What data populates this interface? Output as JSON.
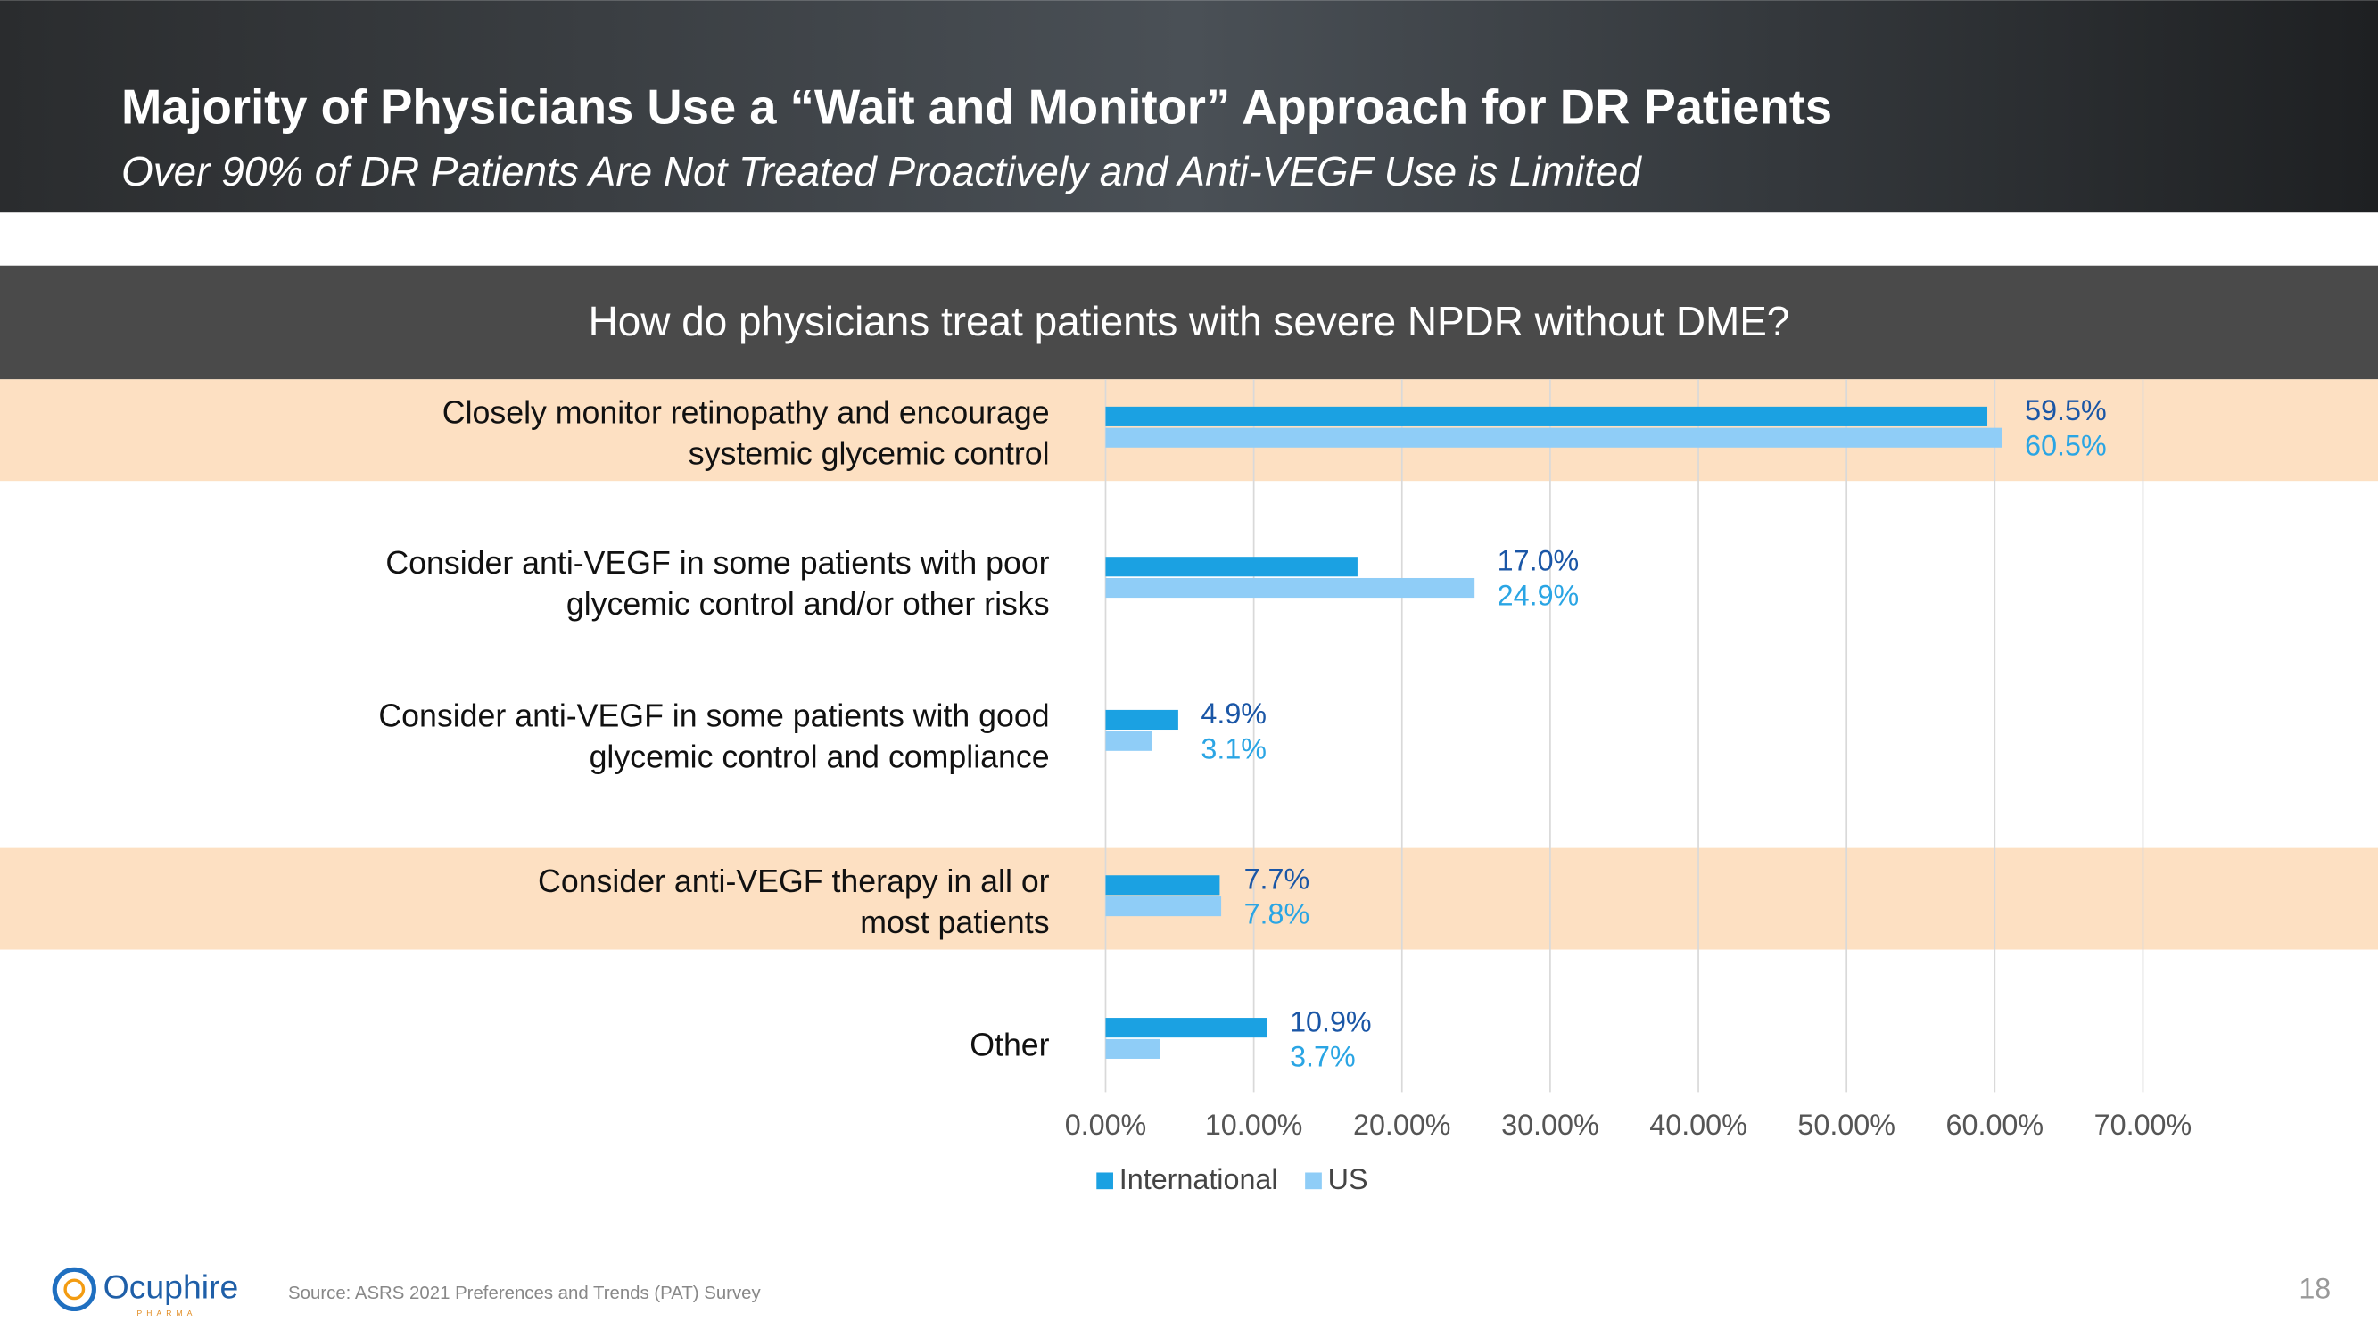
{
  "header": {
    "title": "Majority of Physicians Use a “Wait and Monitor” Approach for DR Patients",
    "subtitle": "Over 90% of DR Patients Are Not Treated Proactively and Anti-VEGF Use is Limited"
  },
  "chart_data": {
    "type": "hbar",
    "title": "How do physicians treat patients with severe NPDR without DME?",
    "categories": [
      "Closely monitor retinopathy and encourage systemic glycemic control",
      "Consider anti-VEGF in some patients with poor glycemic control and/or other risks",
      "Consider anti-VEGF in some patients with good glycemic control and compliance",
      "Consider anti-VEGF therapy in all or most patients",
      "Other"
    ],
    "series": [
      {
        "name": "International",
        "color": "#1ba1e2",
        "label_color": "#1a56a6",
        "values": [
          59.5,
          17.0,
          4.9,
          7.7,
          10.9
        ],
        "value_labels": [
          "59.5%",
          "17.0%",
          "4.9%",
          "7.7%",
          "10.9%"
        ]
      },
      {
        "name": "US",
        "color": "#8fcdf7",
        "label_color": "#2aa5e4",
        "values": [
          60.5,
          24.9,
          3.1,
          7.8,
          3.7
        ],
        "value_labels": [
          "60.5%",
          "24.9%",
          "3.1%",
          "7.8%",
          "3.7%"
        ]
      }
    ],
    "xlim": [
      0,
      70
    ],
    "xticks": [
      {
        "value": 0,
        "label": "0.00%"
      },
      {
        "value": 10,
        "label": "10.00%"
      },
      {
        "value": 20,
        "label": "20.00%"
      },
      {
        "value": 30,
        "label": "30.00%"
      },
      {
        "value": 40,
        "label": "40.00%"
      },
      {
        "value": 50,
        "label": "50.00%"
      },
      {
        "value": 60,
        "label": "60.00%"
      },
      {
        "value": 70,
        "label": "70.00%"
      }
    ],
    "grid": true,
    "legend": "bottom"
  },
  "footer": {
    "logo": "Ocuphire",
    "logo_sub": "PHARMA",
    "source": "Source: ASRS 2021 Preferences and Trends (PAT) Survey",
    "page_number": 18
  }
}
